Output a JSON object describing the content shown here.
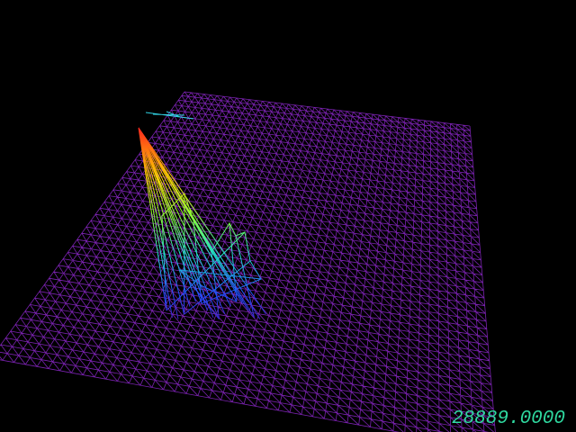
{
  "counter": "28889.0000"
}
